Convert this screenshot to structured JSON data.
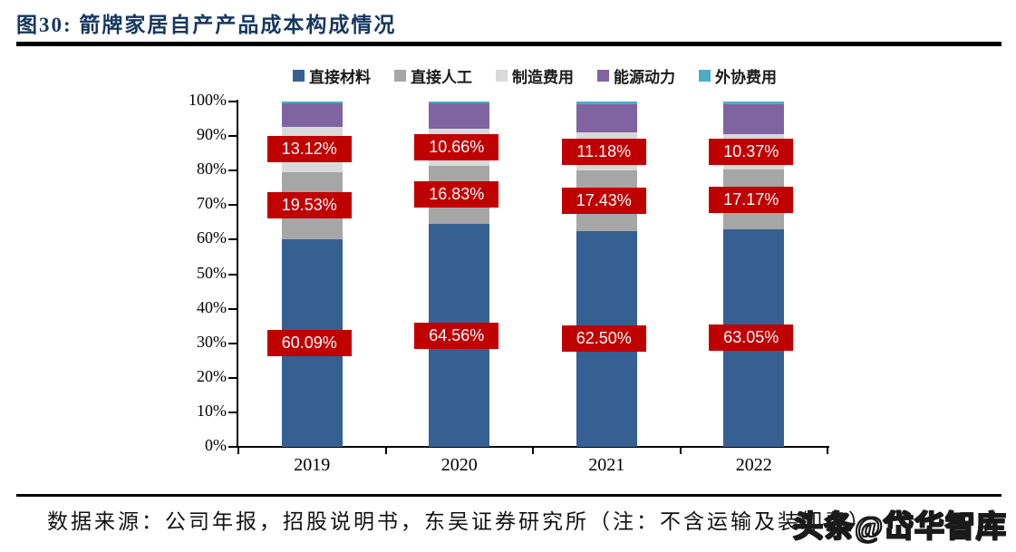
{
  "header": {
    "title": "图30:  箭牌家居自产产品成本构成情况"
  },
  "chart_data": {
    "type": "bar",
    "stacked": true,
    "title": "箭牌家居自产产品成本构成情况",
    "categories": [
      "2019",
      "2020",
      "2021",
      "2022"
    ],
    "series": [
      {
        "name": "直接材料",
        "color": "#376092",
        "values": [
          60.09,
          64.56,
          62.5,
          63.05
        ],
        "labeled": true
      },
      {
        "name": "直接人工",
        "color": "#A6A6A6",
        "values": [
          19.53,
          16.83,
          17.43,
          17.17
        ],
        "labeled": true
      },
      {
        "name": "制造费用",
        "color": "#D9D9D9",
        "values": [
          13.12,
          10.66,
          11.18,
          10.37
        ],
        "labeled": true
      },
      {
        "name": "能源动力",
        "color": "#8064A2",
        "values": [
          6.7,
          7.3,
          8.2,
          8.7
        ],
        "labeled": false
      },
      {
        "name": "外协费用",
        "color": "#4BACC6",
        "values": [
          0.56,
          0.65,
          0.69,
          0.71
        ],
        "labeled": false
      }
    ],
    "y_axis": {
      "min": 0,
      "max": 100,
      "step": 10,
      "tick_labels": [
        "0%",
        "10%",
        "20%",
        "30%",
        "40%",
        "50%",
        "60%",
        "70%",
        "80%",
        "90%",
        "100%"
      ]
    },
    "data_label_style": {
      "background": "#C00000",
      "text_color": "#FFFFFF",
      "format": "0.00%"
    },
    "legend_position": "top",
    "grid": false
  },
  "footer": {
    "source_note": "数据来源：公司年报，招股说明书，东吴证券研究所（注：不含运输及装卸费）",
    "watermark": "头条@岱华智库"
  },
  "colors": {
    "title_text": "#17375E",
    "rule": "#000000",
    "axis": "#000000",
    "label_background": "#C00000"
  }
}
